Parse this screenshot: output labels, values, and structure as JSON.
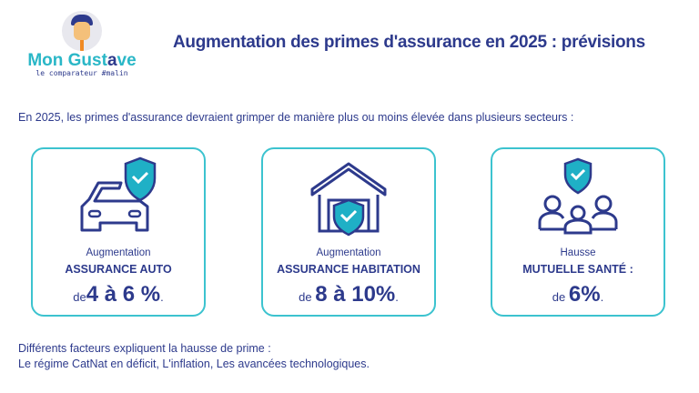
{
  "logo": {
    "brand_1": "Mon Gust",
    "brand_2": "a",
    "brand_3": "ve",
    "tagline": "le comparateur #malin"
  },
  "title": "Augmentation des primes d'assurance en 2025 : prévisions",
  "intro": "En 2025, les primes d'assurance devraient grimper de manière plus ou moins élevée dans plusieurs secteurs :",
  "cards": [
    {
      "icon": "car-shield-icon",
      "line1": "Augmentation",
      "line2": "ASSURANCE AUTO",
      "prefix": "de",
      "value": "4 à 6 %",
      "suffix": "."
    },
    {
      "icon": "house-shield-icon",
      "line1": "Augmentation",
      "line2": "ASSURANCE HABITATION",
      "prefix": "de",
      "value": "8 à 10%",
      "suffix": "."
    },
    {
      "icon": "family-shield-icon",
      "line1": "Hausse",
      "line2": "MUTUELLE SANTÉ :",
      "prefix": "de",
      "value": "6%",
      "suffix": "."
    }
  ],
  "footer": {
    "line1": "Différents facteurs expliquent la hausse de prime :",
    "line2": "Le régime CatNat en déficit, L'inflation, Les avancées technologiques."
  },
  "colors": {
    "navy": "#2d3a8c",
    "teal": "#2ab7c7"
  }
}
